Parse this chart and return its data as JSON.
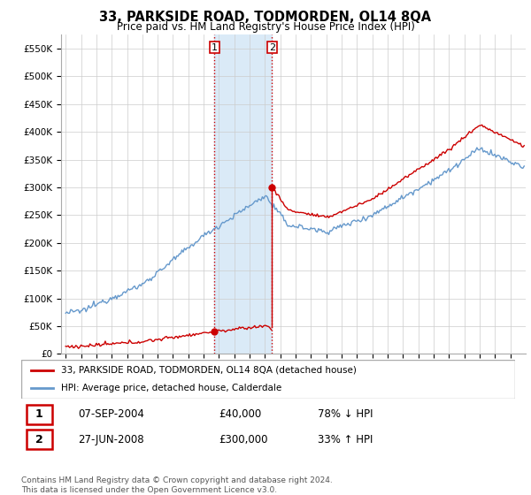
{
  "title": "33, PARKSIDE ROAD, TODMORDEN, OL14 8QA",
  "subtitle": "Price paid vs. HM Land Registry's House Price Index (HPI)",
  "ylabel_ticks": [
    "£0",
    "£50K",
    "£100K",
    "£150K",
    "£200K",
    "£250K",
    "£300K",
    "£350K",
    "£400K",
    "£450K",
    "£500K",
    "£550K"
  ],
  "ytick_vals": [
    0,
    50000,
    100000,
    150000,
    200000,
    250000,
    300000,
    350000,
    400000,
    450000,
    500000,
    550000
  ],
  "ylim": [
    0,
    575000
  ],
  "sale1_year": 2004.708,
  "sale1_val": 40000,
  "sale2_year": 2008.458,
  "sale2_val": 300000,
  "xstart": 1995,
  "xend": 2024,
  "legend_line1": "33, PARKSIDE ROAD, TODMORDEN, OL14 8QA (detached house)",
  "legend_line2": "HPI: Average price, detached house, Calderdale",
  "table_row1": [
    "1",
    "07-SEP-2004",
    "£40,000",
    "78% ↓ HPI"
  ],
  "table_row2": [
    "2",
    "27-JUN-2008",
    "£300,000",
    "33% ↑ HPI"
  ],
  "footnote": "Contains HM Land Registry data © Crown copyright and database right 2024.\nThis data is licensed under the Open Government Licence v3.0.",
  "red_color": "#cc0000",
  "blue_color": "#6699cc",
  "shade_color": "#daeaf7",
  "grid_color": "#cccccc",
  "bg_color": "#ffffff"
}
